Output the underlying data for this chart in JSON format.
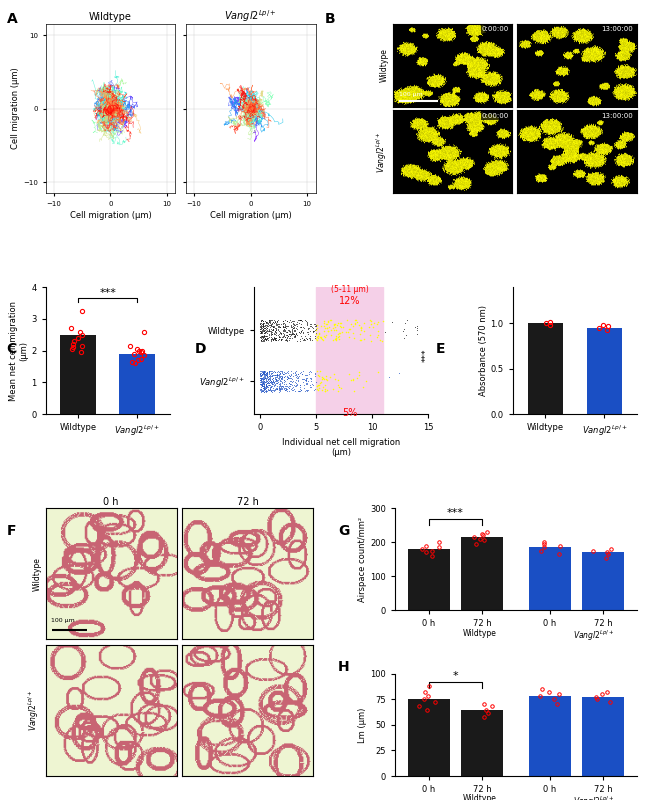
{
  "panel_A": {
    "title_wt": "Wildtype",
    "title_vang": "Vangl2^{Lp/+}",
    "xlabel": "Cell migration (μm)",
    "ylabel": "Cell migration (μm)",
    "xlim": [
      -10,
      10
    ],
    "ylim": [
      -10,
      10
    ],
    "xticks": [
      -10,
      0,
      10
    ],
    "yticks": [
      -10,
      0,
      10
    ]
  },
  "panel_C": {
    "categories": [
      "Wildtype",
      "Vangl2^{Lp/+}"
    ],
    "means": [
      2.5,
      1.9
    ],
    "bar_colors": [
      "#1a1a1a",
      "#1a4fc4"
    ],
    "ylabel": "Mean net cell migration\n(μm)",
    "ylim": [
      0,
      4
    ],
    "yticks": [
      0,
      1,
      2,
      3,
      4
    ],
    "sig_text": "***",
    "dot_color": "#ff0000",
    "wt_dots": [
      3.25,
      2.7,
      2.6,
      2.5,
      2.4,
      2.3,
      2.2,
      2.15,
      2.1,
      2.05,
      1.95
    ],
    "vang_dots": [
      2.6,
      2.15,
      2.05,
      2.0,
      2.0,
      1.95,
      1.9,
      1.85,
      1.75,
      1.7,
      1.65,
      1.6
    ]
  },
  "panel_D": {
    "ylabel_wt": "Wildtype",
    "ylabel_vang": "Vangl2^{Lp/+}",
    "xlabel": "Individual net cell migration\n(μm)",
    "xlim": [
      0,
      15
    ],
    "xticks": [
      0,
      5,
      10,
      15
    ],
    "highlight_xmin": 5,
    "highlight_xmax": 11,
    "highlight_label": "(5-11 μm)",
    "pct_wt": "12%",
    "pct_vang": "5%",
    "sig_text": "***",
    "wt_color": "#1a1a1a",
    "vang_color": "#1a4fc4",
    "highlight_color": "#f5d0e8"
  },
  "panel_E": {
    "categories": [
      "Wildtype",
      "Vangl2^{Lp/+}"
    ],
    "means": [
      1.0,
      0.95
    ],
    "bar_colors": [
      "#1a1a1a",
      "#1a4fc4"
    ],
    "ylabel": "Absorbance (570 nm)",
    "ylim": [
      0,
      1.4
    ],
    "yticks": [
      0.0,
      0.5,
      1.0
    ],
    "dot_color": "#ff0000",
    "wt_dots": [
      1.0,
      0.98,
      1.02
    ],
    "vang_dots": [
      0.97,
      0.95,
      0.93,
      0.98
    ]
  },
  "panel_G": {
    "categories": [
      "0 h",
      "72 h",
      "0 h",
      "72 h"
    ],
    "means": [
      180,
      215,
      185,
      170
    ],
    "bar_colors": [
      "#1a1a1a",
      "#1a1a1a",
      "#1a4fc4",
      "#1a4fc4"
    ],
    "ylabel": "Airspace count/mm²",
    "ylim": [
      0,
      300
    ],
    "yticks": [
      0,
      100,
      200,
      300
    ],
    "sig_text": "***",
    "dot_color": "#ff0000",
    "wt_0h_dots": [
      160,
      170,
      175,
      180,
      185,
      190,
      200
    ],
    "wt_72h_dots": [
      195,
      205,
      210,
      215,
      220,
      225,
      230
    ],
    "vang_0h_dots": [
      165,
      175,
      185,
      190,
      195,
      200
    ],
    "vang_72h_dots": [
      155,
      165,
      170,
      175,
      180
    ]
  },
  "panel_H": {
    "categories": [
      "0 h",
      "72 h",
      "0 h",
      "72 h"
    ],
    "means": [
      75,
      65,
      78,
      77
    ],
    "bar_colors": [
      "#1a1a1a",
      "#1a1a1a",
      "#1a4fc4",
      "#1a4fc4"
    ],
    "ylabel": "Lm (μm)",
    "ylim": [
      0,
      100
    ],
    "yticks": [
      0,
      25,
      50,
      75,
      100
    ],
    "sig_text": "*",
    "dot_color": "#ff0000",
    "wt_0h_dots": [
      65,
      68,
      72,
      75,
      78,
      82,
      88
    ],
    "wt_72h_dots": [
      58,
      62,
      65,
      68,
      70
    ],
    "vang_0h_dots": [
      70,
      75,
      78,
      80,
      82,
      85
    ],
    "vang_72h_dots": [
      72,
      75,
      77,
      80,
      82
    ]
  },
  "background_color": "#ffffff"
}
